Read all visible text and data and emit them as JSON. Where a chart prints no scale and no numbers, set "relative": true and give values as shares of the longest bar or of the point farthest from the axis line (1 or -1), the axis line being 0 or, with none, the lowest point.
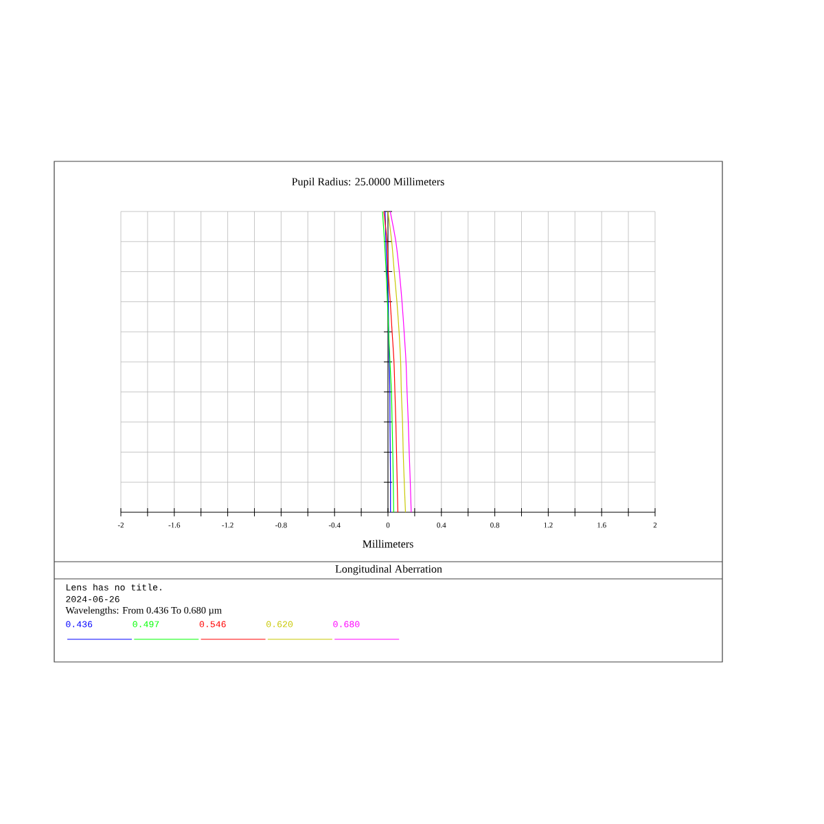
{
  "chart_data": {
    "type": "line",
    "title": "Longitudinal Aberration",
    "subtitle": "Pupil Radius: 25.0000 Millimeters",
    "xlabel": "Millimeters",
    "annotations": [
      "Lens has no title.",
      "2024-06-26",
      "Wavelengths: From 0.436 To 0.680 µm"
    ],
    "relative": true,
    "xlim": [
      -2,
      2
    ],
    "xticks": [
      -2,
      {
        "value": -1.8,
        "label": null
      },
      -1.6,
      {
        "value": -1.4,
        "label": null
      },
      -1.2,
      {
        "value": -1.0,
        "label": null
      },
      -0.8,
      {
        "value": -0.6,
        "label": null
      },
      -0.4,
      {
        "value": -0.2,
        "label": null
      },
      0,
      {
        "value": 0.2,
        "label": null
      },
      0.4,
      {
        "value": 0.6,
        "label": null
      },
      0.8,
      {
        "value": 1.0,
        "label": null
      },
      1.2,
      {
        "value": 1.4,
        "label": null
      },
      1.6,
      {
        "value": 1.8,
        "label": null
      },
      2
    ],
    "tick_labels": "x",
    "grid": true,
    "legend": "bottom",
    "series": [
      {
        "name": "0.436",
        "color": "#0000ff",
        "x": [
          0.019,
          0.019,
          0.017,
          0.015,
          0.014,
          0.01,
          0.005,
          0.002,
          -0.007,
          -0.016,
          -0.021
        ],
        "values": [
          0,
          0.1,
          0.2,
          0.3,
          0.4,
          0.5,
          0.6,
          0.7,
          0.8,
          0.9,
          1
        ]
      },
      {
        "name": "0.497",
        "color": "#00ff00",
        "x": [
          0.043,
          0.04,
          0.036,
          0.031,
          0.026,
          0.015,
          0.005,
          -0.004,
          -0.014,
          -0.026,
          -0.041
        ],
        "values": [
          0,
          0.1,
          0.2,
          0.3,
          0.4,
          0.5,
          0.6,
          0.7,
          0.8,
          0.9,
          1
        ]
      },
      {
        "name": "0.546",
        "color": "#ff0000",
        "x": [
          0.074,
          0.069,
          0.064,
          0.059,
          0.052,
          0.045,
          0.031,
          0.017,
          0.002,
          -0.007,
          -0.031
        ],
        "values": [
          0,
          0.1,
          0.2,
          0.3,
          0.4,
          0.5,
          0.6,
          0.7,
          0.8,
          0.9,
          1
        ]
      },
      {
        "name": "0.620",
        "color": "#c8c800",
        "x": [
          0.131,
          0.122,
          0.114,
          0.109,
          0.1,
          0.095,
          0.083,
          0.067,
          0.047,
          0.028,
          0.0
        ],
        "values": [
          0,
          0.1,
          0.2,
          0.3,
          0.4,
          0.5,
          0.6,
          0.7,
          0.8,
          0.9,
          1
        ]
      },
      {
        "name": "0.680",
        "color": "#ff00ff",
        "x": [
          0.174,
          0.167,
          0.159,
          0.152,
          0.143,
          0.135,
          0.121,
          0.105,
          0.085,
          0.059,
          0.017
        ],
        "values": [
          0,
          0.1,
          0.2,
          0.3,
          0.4,
          0.5,
          0.6,
          0.7,
          0.8,
          0.9,
          1
        ]
      }
    ]
  }
}
